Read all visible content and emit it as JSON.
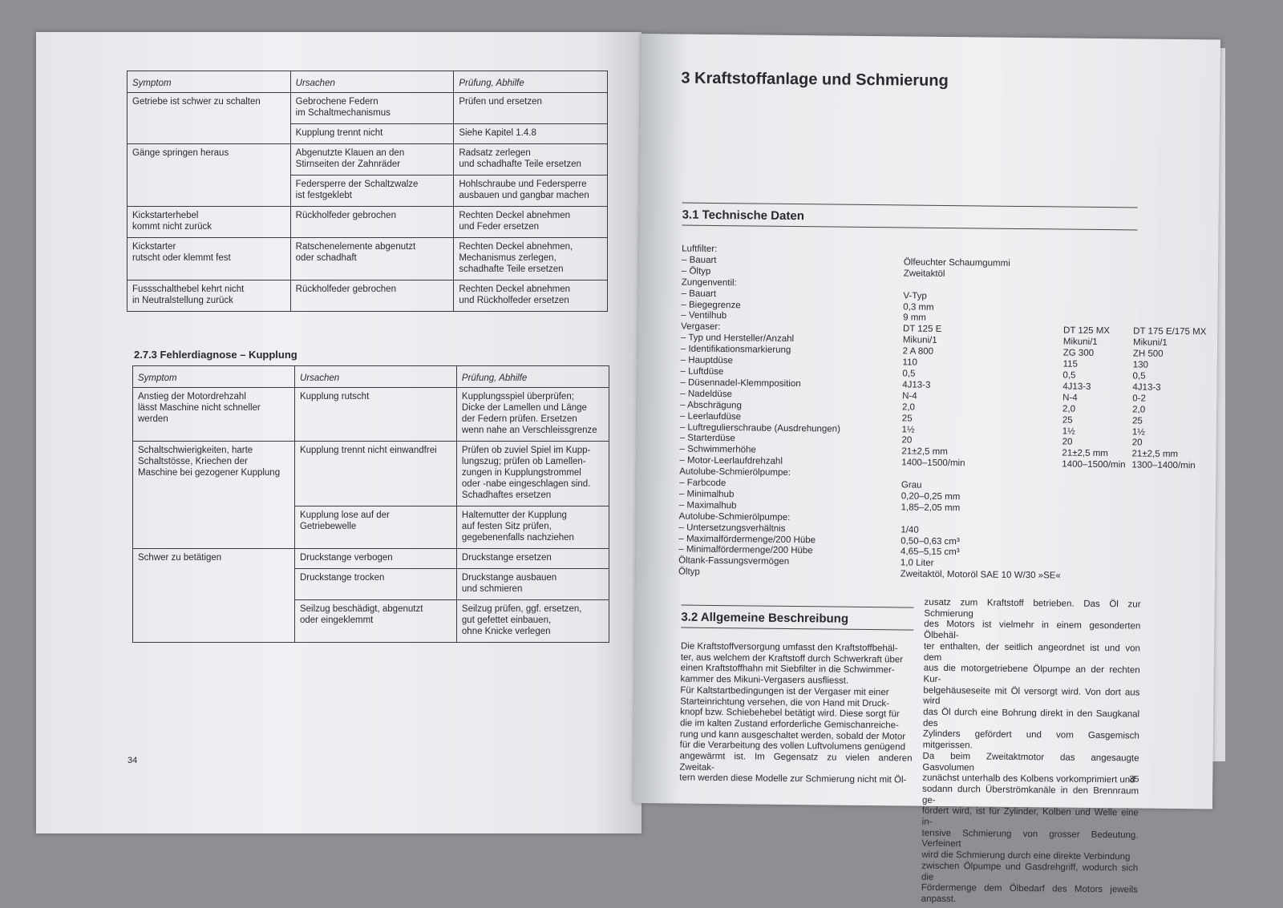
{
  "left_page": {
    "table1": {
      "headers": [
        "Symptom",
        "Ursachen",
        "Prüfung, Abhilfe"
      ],
      "rows": [
        {
          "symptom": "Getriebe ist schwer zu schalten",
          "items": [
            [
              "Gebrochene Federn\nim Schaltmechanismus",
              "Prüfen und ersetzen"
            ],
            [
              "Kupplung trennt nicht",
              "Siehe Kapitel 1.4.8"
            ]
          ]
        },
        {
          "symptom": "Gänge springen heraus",
          "items": [
            [
              "Abgenutzte Klauen an den\nStirnseiten der Zahnräder",
              "Radsatz zerlegen\nund schadhafte Teile ersetzen"
            ],
            [
              "Federsperre der Schaltzwalze\nist festgeklebt",
              "Hohlschraube und Federsperre\nausbauen und gangbar machen"
            ]
          ]
        },
        {
          "symptom": "Kickstarterhebel\nkommt nicht zurück",
          "items": [
            [
              "Rückholfeder gebrochen",
              "Rechten Deckel abnehmen\nund Feder ersetzen"
            ]
          ]
        },
        {
          "symptom": "Kickstarter\nrutscht oder klemmt fest",
          "items": [
            [
              "Ratschenelemente abgenutzt\noder schadhaft",
              "Rechten Deckel abnehmen,\nMechanismus zerlegen,\nschadhafte Teile ersetzen"
            ]
          ]
        },
        {
          "symptom": "Fussschalthebel kehrt nicht\nin Neutralstellung zurück",
          "items": [
            [
              "Rückholfeder gebrochen",
              "Rechten Deckel abnehmen\nund Rückholfeder ersetzen"
            ]
          ]
        }
      ]
    },
    "section_title": "2.7.3 Fehlerdiagnose – Kupplung",
    "table2": {
      "headers": [
        "Symptom",
        "Ursachen",
        "Prüfung, Abhilfe"
      ],
      "rows": [
        {
          "symptom": "Anstieg der Motordrehzahl\nlässt Maschine nicht schneller\nwerden",
          "items": [
            [
              "Kupplung rutscht",
              "Kupplungsspiel überprüfen;\nDicke der Lamellen und Länge\nder Federn prüfen. Ersetzen\nwenn nahe an Verschleissgrenze"
            ]
          ]
        },
        {
          "symptom": "Schaltschwierigkeiten, harte\nSchaltstösse, Kriechen der\nMaschine bei gezogener Kupplung",
          "items": [
            [
              "Kupplung trennt nicht einwandfrei",
              "Prüfen ob zuviel Spiel im Kupp-\nlungszug; prüfen ob Lamellen-\nzungen in Kupplungstrommel\noder -nabe eingeschlagen sind.\nSchadhaftes ersetzen"
            ],
            [
              "Kupplung lose auf der\nGetriebewelle",
              "Haltemutter der Kupplung\nauf festen Sitz prüfen,\ngegebenenfalls nachziehen"
            ]
          ]
        },
        {
          "symptom": "Schwer zu betätigen",
          "items": [
            [
              "Druckstange verbogen",
              "Druckstange ersetzen"
            ],
            [
              "Druckstange trocken",
              "Druckstange ausbauen\nund schmieren"
            ],
            [
              "Seilzug beschädigt, abgenutzt\noder eingeklemmt",
              "Seilzug prüfen, ggf. ersetzen,\ngut gefettet einbauen,\nohne Knicke verlegen"
            ]
          ]
        }
      ]
    },
    "page_number": "34"
  },
  "right_page": {
    "chapter_title": "3  Kraftstoffanlage und Schmierung",
    "section1_title": "3.1  Technische Daten",
    "tech_data": [
      [
        "Luftfilter:"
      ],
      [
        "– Bauart",
        "Ölfeuchter Schaumgummi"
      ],
      [
        "– Öltyp",
        "Zweitaktöl"
      ],
      [
        "Zungenventil:"
      ],
      [
        "– Bauart",
        "V-Typ"
      ],
      [
        "– Biegegrenze",
        "0,3 mm"
      ],
      [
        "– Ventilhub",
        "9 mm"
      ],
      [
        "Vergaser:",
        "DT 125 E",
        "DT 125 MX",
        "DT 175 E/175 MX"
      ],
      [
        "– Typ und Hersteller/Anzahl",
        "Mikuni/1",
        "Mikuni/1",
        "Mikuni/1"
      ],
      [
        "– Identifikationsmarkierung",
        "2 A 800",
        "ZG 300",
        "ZH 500"
      ],
      [
        "– Hauptdüse",
        "110",
        "115",
        "130"
      ],
      [
        "– Luftdüse",
        "0,5",
        "0,5",
        "0,5"
      ],
      [
        "– Düsennadel-Klemmposition",
        "4J13-3",
        "4J13-3",
        "4J13-3"
      ],
      [
        "– Nadeldüse",
        "N-4",
        "N-4",
        "0-2"
      ],
      [
        "– Abschrägung",
        "2,0",
        "2,0",
        "2,0"
      ],
      [
        "– Leerlaufdüse",
        "25",
        "25",
        "25"
      ],
      [
        "– Luftregulierschraube (Ausdrehungen)",
        "1½",
        "1½",
        "1½"
      ],
      [
        "– Starterdüse",
        "20",
        "20",
        "20"
      ],
      [
        "– Schwimmerhöhe",
        "21±2,5 mm",
        "21±2,5 mm",
        "21±2,5 mm"
      ],
      [
        "– Motor-Leerlaufdrehzahl",
        "1400–1500/min",
        "1400–1500/min",
        "1300–1400/min"
      ],
      [
        "Autolube-Schmierölpumpe:"
      ],
      [
        "– Farbcode",
        "Grau"
      ],
      [
        "– Minimalhub",
        "0,20–0,25 mm"
      ],
      [
        "– Maximalhub",
        "1,85–2,05 mm"
      ],
      [
        "Autolube-Schmierölpumpe:"
      ],
      [
        "– Untersetzungsverhältnis",
        "1/40"
      ],
      [
        "– Maximalfördermenge/200 Hübe",
        "0,50–0,63 cm³"
      ],
      [
        "– Minimalfördermenge/200 Hübe",
        "4,65–5,15 cm³"
      ],
      [
        "Öltank-Fassungsvermögen",
        "1,0 Liter"
      ],
      [
        "Öltyp",
        "Zweitaktöl, Motoröl SAE 10 W/30 »SE«"
      ]
    ],
    "section2_title": "3.2  Allgemeine Beschreibung",
    "paragraph_col1": "Die Kraftstoffversorgung umfasst den Kraftstoffbehäl-\nter, aus welchem der Kraftstoff durch Schwerkraft über\neinen Kraftstoffhahn mit Siebfilter in die Schwimmer-\nkammer des Mikuni-Vergasers ausfliesst.\nFür Kaltstartbedingungen ist der Vergaser mit einer\nStarteinrichtung versehen, die von Hand mit Druck-\nknopf bzw. Schiebehebel betätigt wird. Diese sorgt für\ndie im kalten Zustand erforderliche Gemischanreiche-\nrung und kann ausgeschaltet werden, sobald der Motor\nfür die Verarbeitung des vollen Luftvolumens genügend\nangewärmt ist. Im Gegensatz zu vielen anderen Zweitak-\ntern werden diese Modelle zur Schmierung nicht mit Öl-",
    "paragraph_col2": "zusatz zum Kraftstoff betrieben. Das Öl zur Schmierung\ndes Motors ist vielmehr in einem gesonderten Ölbehäl-\nter enthalten, der seitlich angeordnet ist und von dem\naus die motorgetriebene Ölpumpe an der rechten Kur-\nbelgehäuseseite mit Öl versorgt wird. Von dort aus wird\ndas Öl durch eine Bohrung direkt in den Saugkanal des\nZylinders gefördert und vom Gasgemisch mitgerissen.\nDa beim Zweitaktmotor das angesaugte Gasvolumen\nzunächst unterhalb des Kolbens vorkomprimiert und\nsodann durch Überströmkanäle in den Brennraum ge-\nfördert wird, ist für Zylinder, Kolben und Welle eine in-\ntensive Schmierung von grosser Bedeutung. Verfeinert\nwird die Schmierung durch eine direkte Verbindung\nzwischen Ölpumpe und Gasdrehgriff, wodurch sich die\nFördermenge dem Ölbedarf des Motors jeweils anpasst.",
    "page_number": "35"
  }
}
